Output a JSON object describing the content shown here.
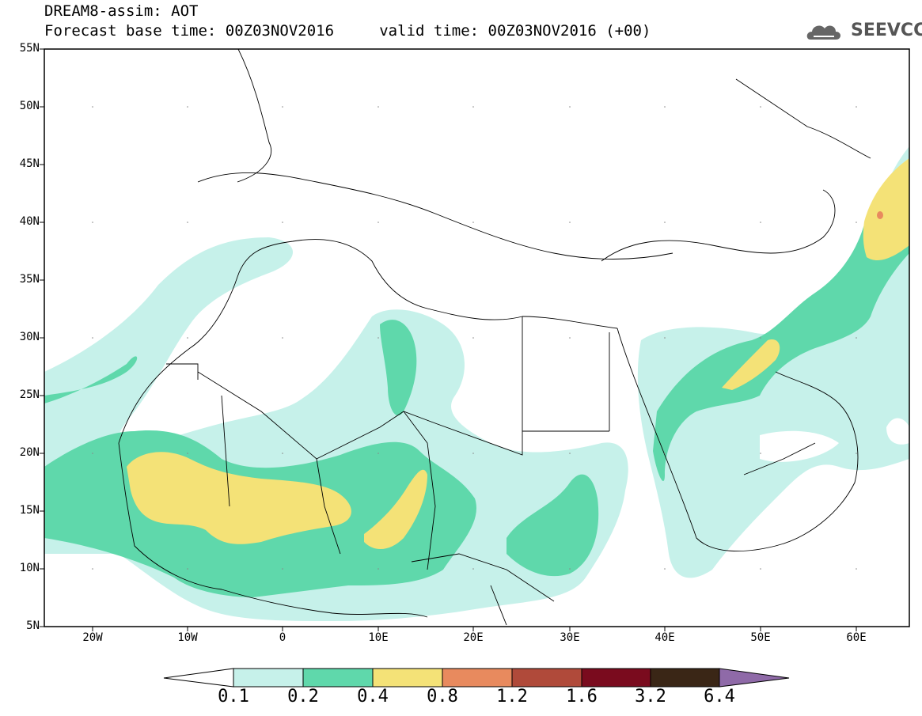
{
  "header": {
    "line1": "DREAM8-assim: AOT",
    "line2": "Forecast base time: 00Z03NOV2016     valid time: 00Z03NOV2016 (+00)"
  },
  "logo": {
    "text": "SEEVCCC",
    "icon": "cloud-logo-icon"
  },
  "map": {
    "latitude_labels": [
      "55N",
      "50N",
      "45N",
      "40N",
      "35N",
      "30N",
      "25N",
      "20N",
      "15N",
      "10N",
      "5N"
    ],
    "longitude_labels": [
      "20W",
      "10W",
      "0",
      "10E",
      "20E",
      "30E",
      "40E",
      "50E",
      "60E"
    ],
    "variable": "AOT"
  },
  "legend": {
    "labels": [
      "0.1",
      "0.2",
      "0.4",
      "0.8",
      "1.2",
      "1.6",
      "3.2",
      "6.4"
    ],
    "colors": [
      "#ffffff",
      "#c6f1ea",
      "#5fd8ab",
      "#f4e277",
      "#e88a5e",
      "#b04a3a",
      "#7a0b1e",
      "#3a2616",
      "#8f6aa8"
    ]
  }
}
